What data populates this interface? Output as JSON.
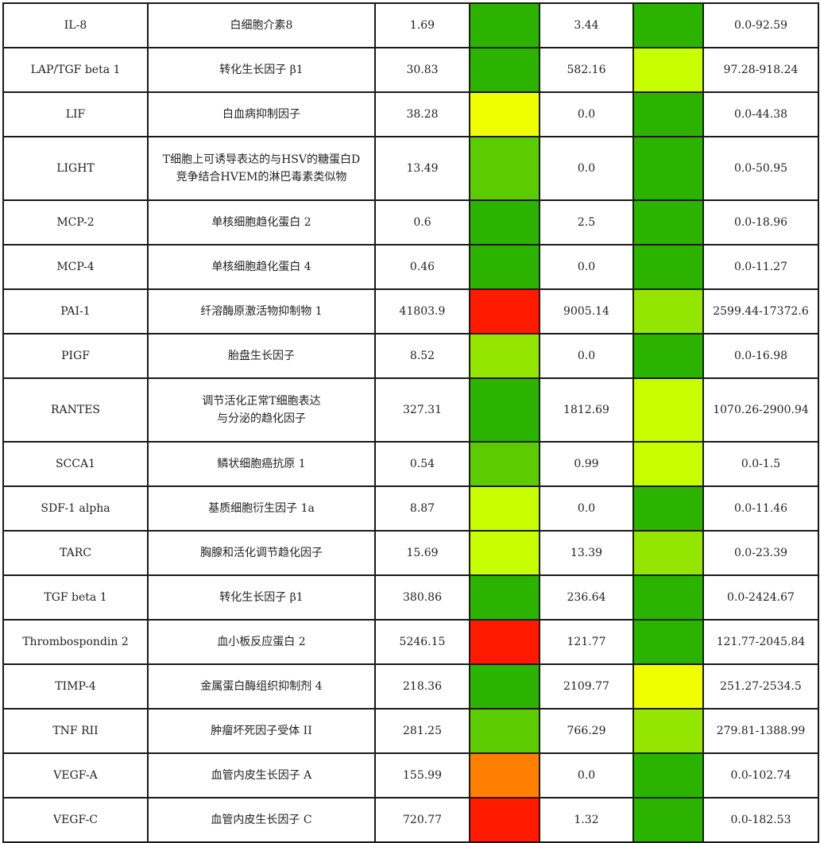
{
  "colors": {
    "green": "#2cb300",
    "green_light": "#5ccc00",
    "yellow_green": "#94e600",
    "lime": "#c8ff00",
    "yellow": "#f0ff00",
    "orange": "#ff8000",
    "red": "#ff1a00"
  },
  "rows": [
    {
      "name": "IL-8",
      "desc": [
        "白细胞介素8"
      ],
      "v1": "1.69",
      "c1": "#2cb300",
      "v2": "3.44",
      "c2": "#2cb300",
      "range": "0.0-92.59",
      "h": 56
    },
    {
      "name": "LAP/TGF beta 1",
      "desc": [
        "转化生长因子 β1"
      ],
      "v1": "30.83",
      "c1": "#2cb300",
      "v2": "582.16",
      "c2": "#c8ff00",
      "range": "97.28-918.24",
      "h": 56
    },
    {
      "name": "LIF",
      "desc": [
        "白血病抑制因子"
      ],
      "v1": "38.28",
      "c1": "#f0ff00",
      "v2": "0.0",
      "c2": "#2cb300",
      "range": "0.0-44.38",
      "h": 56
    },
    {
      "name": "LIGHT",
      "desc": [
        "T细胞上可诱导表达的与HSV的糖蛋白D",
        "竞争结合HVEM的淋巴毒素类似物"
      ],
      "v1": "13.49",
      "c1": "#5ccc00",
      "v2": "0.0",
      "c2": "#2cb300",
      "range": "0.0-50.95",
      "h": 80
    },
    {
      "name": "MCP-2",
      "desc": [
        "单核细胞趋化蛋白 2"
      ],
      "v1": "0.6",
      "c1": "#2cb300",
      "v2": "2.5",
      "c2": "#2cb300",
      "range": "0.0-18.96",
      "h": 56
    },
    {
      "name": "MCP-4",
      "desc": [
        "单核细胞趋化蛋白 4"
      ],
      "v1": "0.46",
      "c1": "#2cb300",
      "v2": "0.0",
      "c2": "#2cb300",
      "range": "0.0-11.27",
      "h": 56
    },
    {
      "name": "PAI-1",
      "desc": [
        "纤溶酶原激活物抑制物 1"
      ],
      "v1": "41803.9",
      "c1": "#ff1a00",
      "v2": "9005.14",
      "c2": "#94e600",
      "range": "2599.44-17372.6",
      "h": 56
    },
    {
      "name": "PIGF",
      "desc": [
        "胎盘生长因子"
      ],
      "v1": "8.52",
      "c1": "#94e600",
      "v2": "0.0",
      "c2": "#2cb300",
      "range": "0.0-16.98",
      "h": 56
    },
    {
      "name": "RANTES",
      "desc": [
        "调节活化正常T细胞表达",
        "与分泌的趋化因子"
      ],
      "v1": "327.31",
      "c1": "#2cb300",
      "v2": "1812.69",
      "c2": "#c8ff00",
      "range": "1070.26-2900.94",
      "h": 80
    },
    {
      "name": "SCCA1",
      "desc": [
        "鳞状细胞癌抗原 1"
      ],
      "v1": "0.54",
      "c1": "#5ccc00",
      "v2": "0.99",
      "c2": "#c8ff00",
      "range": "0.0-1.5",
      "h": 56
    },
    {
      "name": "SDF-1 alpha",
      "desc": [
        "基质细胞衍生因子 1a"
      ],
      "v1": "8.87",
      "c1": "#c8ff00",
      "v2": "0.0",
      "c2": "#2cb300",
      "range": "0.0-11.46",
      "h": 56
    },
    {
      "name": "TARC",
      "desc": [
        "胸腺和活化调节趋化因子"
      ],
      "v1": "15.69",
      "c1": "#c8ff00",
      "v2": "13.39",
      "c2": "#94e600",
      "range": "0.0-23.39",
      "h": 56
    },
    {
      "name": "TGF beta 1",
      "desc": [
        "转化生长因子 β1"
      ],
      "v1": "380.86",
      "c1": "#2cb300",
      "v2": "236.64",
      "c2": "#2cb300",
      "range": "0.0-2424.67",
      "h": 56
    },
    {
      "name": "Thrombospondin 2",
      "desc": [
        "血小板反应蛋白 2"
      ],
      "v1": "5246.15",
      "c1": "#ff1a00",
      "v2": "121.77",
      "c2": "#2cb300",
      "range": "121.77-2045.84",
      "h": 56
    },
    {
      "name": "TIMP-4",
      "desc": [
        "金属蛋白酶组织抑制剂 4"
      ],
      "v1": "218.36",
      "c1": "#2cb300",
      "v2": "2109.77",
      "c2": "#f0ff00",
      "range": "251.27-2534.5",
      "h": 56
    },
    {
      "name": "TNF RII",
      "desc": [
        "肿瘤坏死因子受体 II"
      ],
      "v1": "281.25",
      "c1": "#5ccc00",
      "v2": "766.29",
      "c2": "#94e600",
      "range": "279.81-1388.99",
      "h": 56
    },
    {
      "name": "VEGF-A",
      "desc": [
        "血管内皮生长因子 A"
      ],
      "v1": "155.99",
      "c1": "#ff8000",
      "v2": "0.0",
      "c2": "#2cb300",
      "range": "0.0-102.74",
      "h": 56
    },
    {
      "name": "VEGF-C",
      "desc": [
        "血管内皮生长因子 C"
      ],
      "v1": "720.77",
      "c1": "#ff1a00",
      "v2": "1.32",
      "c2": "#2cb300",
      "range": "0.0-182.53",
      "h": 56
    }
  ]
}
